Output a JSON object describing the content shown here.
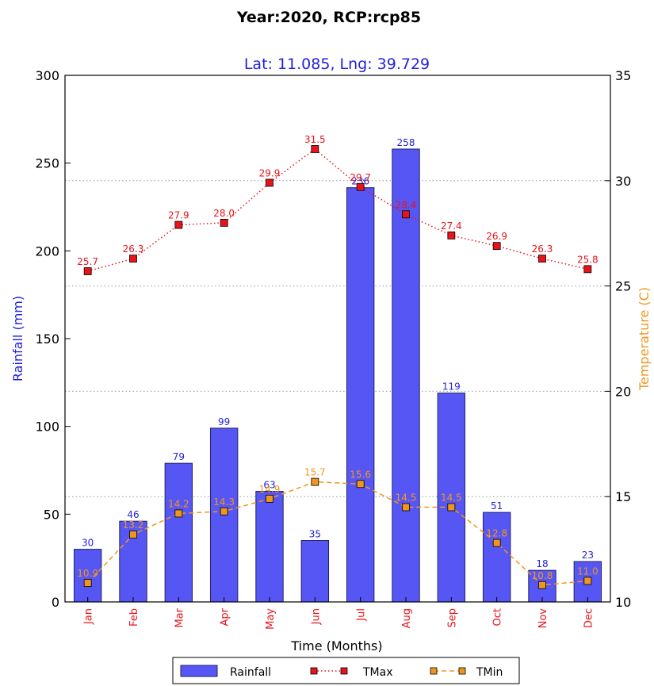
{
  "chart_data": {
    "type": "bar",
    "title": "Year:2020, RCP:rcp85",
    "subtitle": "Lat: 11.085, Lng: 39.729",
    "xlabel": "Time (Months)",
    "ylabel_left": "Rainfall (mm)",
    "ylabel_right": "Temperature (C)",
    "categories": [
      "Jan",
      "Feb",
      "Mar",
      "Apr",
      "May",
      "Jun",
      "Jul",
      "Aug",
      "Sep",
      "Oct",
      "Nov",
      "Dec"
    ],
    "ylim_left": [
      0,
      300
    ],
    "ylim_right": [
      10,
      35
    ],
    "yticks_left": [
      0,
      50,
      100,
      150,
      200,
      250,
      300
    ],
    "yticks_right": [
      10,
      15,
      20,
      25,
      30,
      35
    ],
    "grid": "horizontal dotted at right-axis ticks",
    "legend_position": "bottom-center",
    "series": [
      {
        "name": "Rainfall",
        "type": "bar",
        "axis": "left",
        "color": "#5656f5",
        "label_color": "#2222dd",
        "values": [
          30,
          46,
          79,
          99,
          63,
          35,
          236,
          258,
          119,
          51,
          18,
          23
        ],
        "labels": [
          "30",
          "46",
          "79",
          "99",
          "63",
          "35",
          "236",
          "258",
          "119",
          "51",
          "18",
          "23"
        ]
      },
      {
        "name": "TMax",
        "type": "line",
        "axis": "right",
        "color": "#e8141a",
        "line_style": "dotted",
        "marker": "square",
        "values": [
          25.7,
          26.3,
          27.9,
          28.0,
          29.9,
          31.5,
          29.7,
          28.4,
          27.4,
          26.9,
          26.3,
          25.8
        ],
        "labels": [
          "25.7",
          "26.3",
          "27.9",
          "28.0",
          "29.9",
          "31.5",
          "29.7",
          "28.4",
          "27.4",
          "26.9",
          "26.3",
          "25.8"
        ]
      },
      {
        "name": "TMin",
        "type": "line",
        "axis": "right",
        "color": "#f0961e",
        "line_style": "dashed",
        "marker": "square",
        "values": [
          10.9,
          13.2,
          14.2,
          14.3,
          14.9,
          15.7,
          15.6,
          14.5,
          14.5,
          12.8,
          10.8,
          11.0
        ],
        "labels": [
          "10.9",
          "13.2",
          "14.2",
          "14.3",
          "14.9",
          "15.7",
          "15.6",
          "14.5",
          "14.5",
          "12.8",
          "10.8",
          "11.0"
        ]
      }
    ],
    "colors": {
      "subtitle": "#2222dd",
      "left_axis_label": "#2222dd",
      "right_axis_label": "#f0961e",
      "month_labels": "#e8141a",
      "grid": "#999999"
    }
  }
}
